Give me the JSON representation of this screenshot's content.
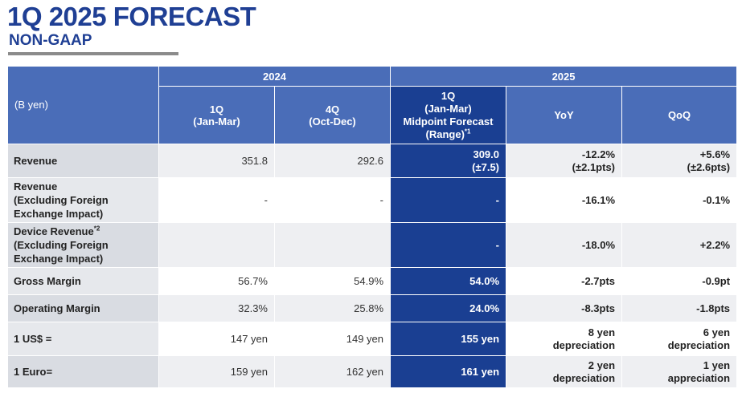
{
  "title": "1Q 2025 FORECAST",
  "subtitle": "NON-GAAP",
  "unit": "(B yen)",
  "years": {
    "y2024": "2024",
    "y2025": "2025"
  },
  "columns": {
    "q1_2024": {
      "line1": "1Q",
      "line2": "(Jan-Mar)"
    },
    "q4_2024": {
      "line1": "4Q",
      "line2": "(Oct-Dec)"
    },
    "q1_2025": {
      "line1": "1Q",
      "line2": "(Jan-Mar)",
      "line3": "Midpoint Forecast",
      "line4": "(Range)",
      "sup": "*1"
    },
    "yoy": "YoY",
    "qoq": "QoQ"
  },
  "rows": [
    {
      "label": [
        "Revenue"
      ],
      "q1_2024": "351.8",
      "q4_2024": "292.6",
      "forecast": [
        "309.0",
        "(±7.5)"
      ],
      "yoy": [
        "-12.2%",
        "(±2.1pts)"
      ],
      "qoq": [
        "+5.6%",
        "(±2.6pts)"
      ]
    },
    {
      "label": [
        "Revenue",
        "(Excluding Foreign",
        "Exchange Impact)"
      ],
      "q1_2024": "-",
      "q4_2024": "-",
      "forecast": [
        "-"
      ],
      "yoy": [
        "-16.1%"
      ],
      "qoq": [
        "-0.1%"
      ]
    },
    {
      "label": [
        "Device Revenue",
        "(Excluding Foreign",
        "Exchange Impact)"
      ],
      "label_sup": "*2",
      "q1_2024": "",
      "q4_2024": "",
      "forecast": [
        "-"
      ],
      "yoy": [
        "-18.0%"
      ],
      "qoq": [
        "+2.2%"
      ]
    },
    {
      "label": [
        "Gross Margin"
      ],
      "q1_2024": "56.7%",
      "q4_2024": "54.9%",
      "forecast": [
        "54.0%"
      ],
      "yoy": [
        "-2.7pts"
      ],
      "qoq": [
        "-0.9pt"
      ]
    },
    {
      "label": [
        "Operating Margin"
      ],
      "q1_2024": "32.3%",
      "q4_2024": "25.8%",
      "forecast": [
        "24.0%"
      ],
      "yoy": [
        "-8.3pts"
      ],
      "qoq": [
        "-1.8pts"
      ]
    },
    {
      "label": [
        "1 US$ ="
      ],
      "q1_2024": "147 yen",
      "q4_2024": "149 yen",
      "forecast": [
        "155 yen"
      ],
      "yoy": [
        "8 yen",
        "depreciation"
      ],
      "qoq": [
        "6 yen",
        "depreciation"
      ]
    },
    {
      "label": [
        "1 Euro="
      ],
      "q1_2024": "159 yen",
      "q4_2024": "162 yen",
      "forecast": [
        "161 yen"
      ],
      "yoy": [
        "2 yen",
        "depreciation"
      ],
      "qoq": [
        "1 yen",
        "appreciation"
      ]
    }
  ]
}
